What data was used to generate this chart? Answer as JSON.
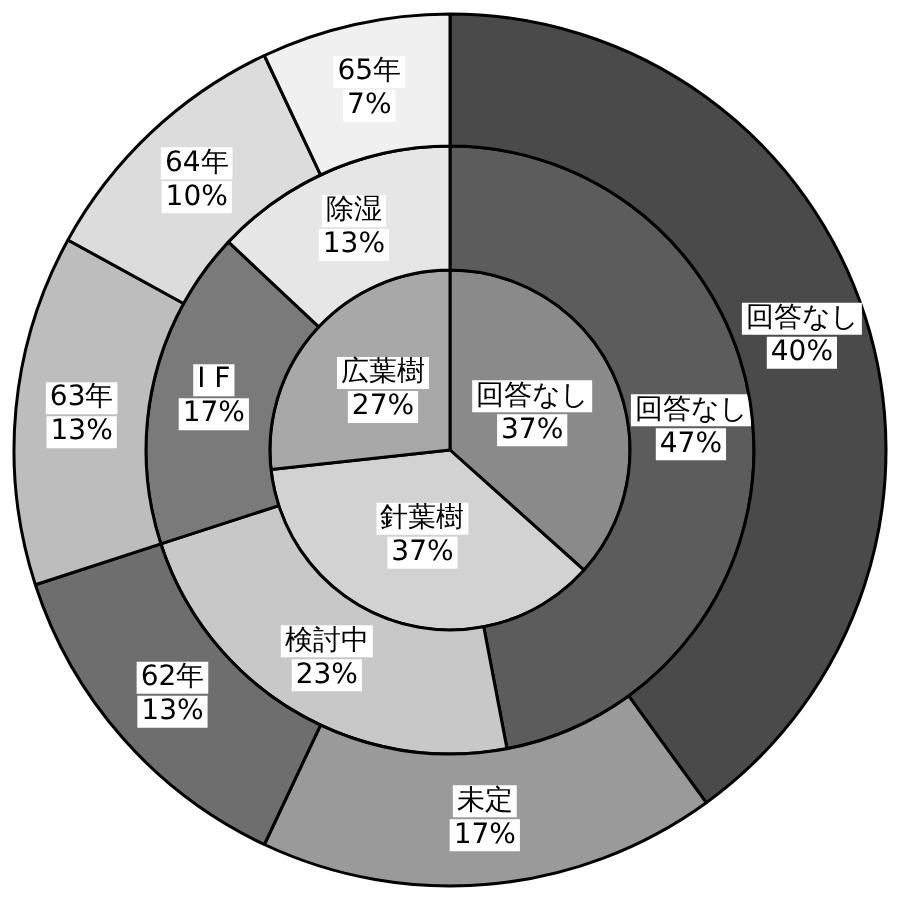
{
  "chart_data": [
    {
      "type": "donut",
      "categories": [
        "回答なし",
        "未定",
        "62年",
        "63年",
        "64年",
        "65年"
      ],
      "values": [
        40,
        17,
        13,
        13,
        10,
        7
      ],
      "value_labels": [
        "40%",
        "17%",
        "13%",
        "13%",
        "10%",
        "7%"
      ],
      "colors": [
        "#4a4a4a",
        "#9a9a9a",
        "#6e6e6e",
        "#bdbdbd",
        "#dcdcdc",
        "#f0f0f0"
      ]
    },
    {
      "type": "donut",
      "categories": [
        "回答なし",
        "検討中",
        "I F",
        "除湿"
      ],
      "values": [
        47,
        23,
        17,
        13
      ],
      "value_labels": [
        "47%",
        "23%",
        "17%",
        "13%"
      ],
      "colors": [
        "#5c5c5c",
        "#c8c8c8",
        "#7a7a7a",
        "#e6e6e6"
      ]
    },
    {
      "type": "pie",
      "categories": [
        "回答なし",
        "針葉樹",
        "広葉樹"
      ],
      "values": [
        37,
        37,
        27
      ],
      "value_labels": [
        "37%",
        "37%",
        "27%"
      ],
      "colors": [
        "#8a8a8a",
        "#d2d2d2",
        "#a8a8a8"
      ]
    }
  ]
}
